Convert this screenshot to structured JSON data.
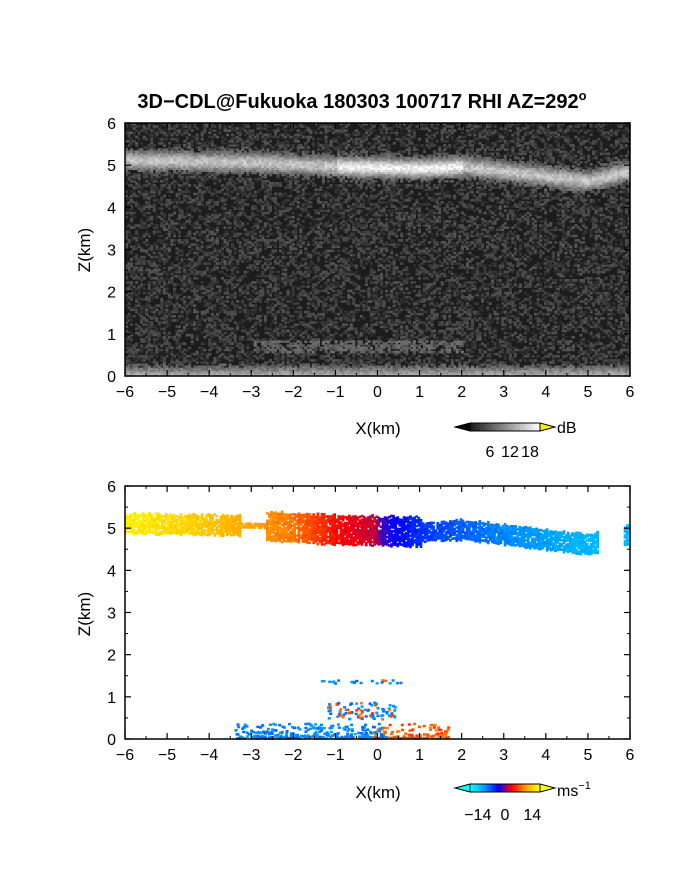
{
  "chart_data": [
    {
      "type": "heatmap",
      "title": "3D−CDL@Fukuoka 180303 100717 RHI AZ=292",
      "title_superscript": "o",
      "xlabel": "X(km)",
      "ylabel": "Z(km)",
      "xlim": [
        -6,
        6
      ],
      "ylim": [
        0,
        6
      ],
      "xticks": [
        "−6",
        "−5",
        "−4",
        "−3",
        "−2",
        "−1",
        "0",
        "1",
        "2",
        "3",
        "4",
        "5",
        "6"
      ],
      "yticks": [
        "0",
        "1",
        "2",
        "3",
        "4",
        "5",
        "6"
      ],
      "colorbar": {
        "label": "dB",
        "ticks": [
          "6",
          "12",
          "18"
        ],
        "colormap": "grayscale",
        "range": [
          0,
          21
        ]
      },
      "features": [
        {
          "name": "cloud layer",
          "x_range": [
            -6,
            6
          ],
          "z_center": [
            5.1,
            5.05,
            4.95,
            4.9,
            4.95,
            4.6,
            4.85
          ],
          "z_at_x": [
            -6,
            -3,
            -1,
            1,
            2,
            5,
            6
          ],
          "thickness_km": 0.35,
          "intensity_db": 12
        },
        {
          "name": "near-surface layer",
          "x_range": [
            -6,
            6
          ],
          "z": 0.1,
          "intensity_db": 10
        },
        {
          "name": "weak aerosol layer",
          "x_range": [
            -3,
            2
          ],
          "z": 0.65,
          "intensity_db": 5
        }
      ]
    },
    {
      "type": "heatmap",
      "xlabel": "X(km)",
      "ylabel": "Z(km)",
      "xlim": [
        -6,
        6
      ],
      "ylim": [
        0,
        6
      ],
      "xticks": [
        "−6",
        "−5",
        "−4",
        "−3",
        "−2",
        "−1",
        "0",
        "1",
        "2",
        "3",
        "4",
        "5",
        "6"
      ],
      "yticks": [
        "0",
        "1",
        "2",
        "3",
        "4",
        "5",
        "6"
      ],
      "colorbar": {
        "label": "ms",
        "label_superscript": "−1",
        "ticks": [
          "−14",
          "0",
          "14"
        ],
        "range": [
          -18,
          18
        ],
        "colors": [
          "#00ffff",
          "#0099ff",
          "#0000ff",
          "#ff0000",
          "#ff9900",
          "#ffff00"
        ]
      },
      "cloud_velocity": {
        "x": [
          -6,
          -4,
          -2,
          -1,
          -0.1,
          0.1,
          1,
          3,
          5
        ],
        "v": [
          17,
          14,
          9,
          4,
          2,
          -2,
          -6,
          -10,
          -13
        ]
      },
      "low_level": {
        "blue_x_range": [
          -3.4,
          0.2
        ],
        "red_x_range": [
          -0.1,
          1.7
        ],
        "z_max": 1.4
      }
    }
  ]
}
